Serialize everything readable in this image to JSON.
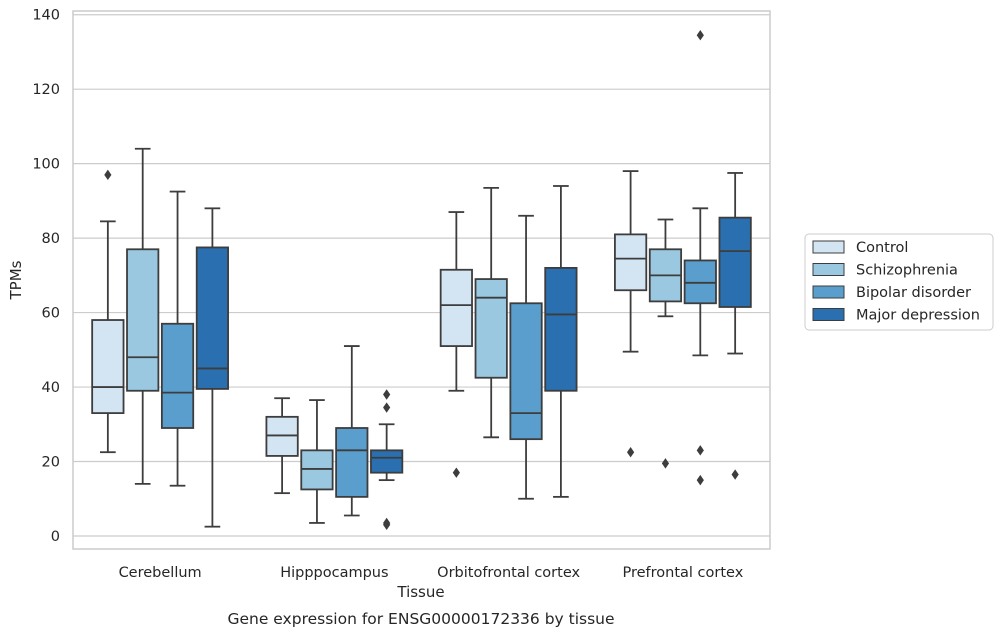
{
  "caption": "Gene expression for ENSG00000172336 by tissue",
  "chart_data": {
    "type": "boxplot",
    "xlabel": "Tissue",
    "ylabel": "TPMs",
    "ylim": [
      -3.5,
      141
    ],
    "yticks": [
      0,
      20,
      40,
      60,
      80,
      100,
      120,
      140
    ],
    "grid": "horizontal",
    "legend_position": "right",
    "categories": [
      "Cerebellum",
      "Hipppocampus",
      "Orbitofrontal cortex",
      "Prefrontal cortex"
    ],
    "series": [
      {
        "name": "Control",
        "color": "#d3e4f3",
        "boxes": [
          {
            "whisker_low": 22.5,
            "q1": 33,
            "median": 40,
            "q3": 58,
            "whisker_high": 84.5,
            "outliers": [
              97
            ]
          },
          {
            "whisker_low": 11.5,
            "q1": 21.5,
            "median": 27,
            "q3": 32,
            "whisker_high": 37,
            "outliers": []
          },
          {
            "whisker_low": 39,
            "q1": 51,
            "median": 62,
            "q3": 71.5,
            "whisker_high": 87,
            "outliers": [
              17
            ]
          },
          {
            "whisker_low": 49.5,
            "q1": 66,
            "median": 74.5,
            "q3": 81,
            "whisker_high": 98,
            "outliers": [
              22.5
            ]
          }
        ]
      },
      {
        "name": "Schizophrenia",
        "color": "#9ac8e0",
        "boxes": [
          {
            "whisker_low": 14,
            "q1": 39,
            "median": 48,
            "q3": 77,
            "whisker_high": 104,
            "outliers": []
          },
          {
            "whisker_low": 3.5,
            "q1": 12.5,
            "median": 18,
            "q3": 23,
            "whisker_high": 36.5,
            "outliers": []
          },
          {
            "whisker_low": 26.5,
            "q1": 42.5,
            "median": 64,
            "q3": 69,
            "whisker_high": 93.5,
            "outliers": []
          },
          {
            "whisker_low": 59,
            "q1": 63,
            "median": 70,
            "q3": 77,
            "whisker_high": 85,
            "outliers": [
              19.5
            ]
          }
        ]
      },
      {
        "name": "Bipolar disorder",
        "color": "#5a9ecd",
        "boxes": [
          {
            "whisker_low": 13.5,
            "q1": 29,
            "median": 38.5,
            "q3": 57,
            "whisker_high": 92.5,
            "outliers": []
          },
          {
            "whisker_low": 5.5,
            "q1": 10.5,
            "median": 23,
            "q3": 29,
            "whisker_high": 51,
            "outliers": []
          },
          {
            "whisker_low": 10,
            "q1": 26,
            "median": 33,
            "q3": 62.5,
            "whisker_high": 86,
            "outliers": []
          },
          {
            "whisker_low": 48.5,
            "q1": 62.5,
            "median": 68,
            "q3": 74,
            "whisker_high": 88,
            "outliers": [
              23,
              15,
              134.5
            ]
          }
        ]
      },
      {
        "name": "Major depression",
        "color": "#2a6fb0",
        "boxes": [
          {
            "whisker_low": 2.5,
            "q1": 39.5,
            "median": 45,
            "q3": 77.5,
            "whisker_high": 88,
            "outliers": []
          },
          {
            "whisker_low": 15,
            "q1": 17,
            "median": 21,
            "q3": 23,
            "whisker_high": 30,
            "outliers": [
              34.5,
              38,
              3.5,
              3
            ]
          },
          {
            "whisker_low": 10.5,
            "q1": 39,
            "median": 59.5,
            "q3": 72,
            "whisker_high": 94,
            "outliers": []
          },
          {
            "whisker_low": 49,
            "q1": 61.5,
            "median": 76.5,
            "q3": 85.5,
            "whisker_high": 97.5,
            "outliers": [
              16.5
            ]
          }
        ]
      }
    ]
  }
}
